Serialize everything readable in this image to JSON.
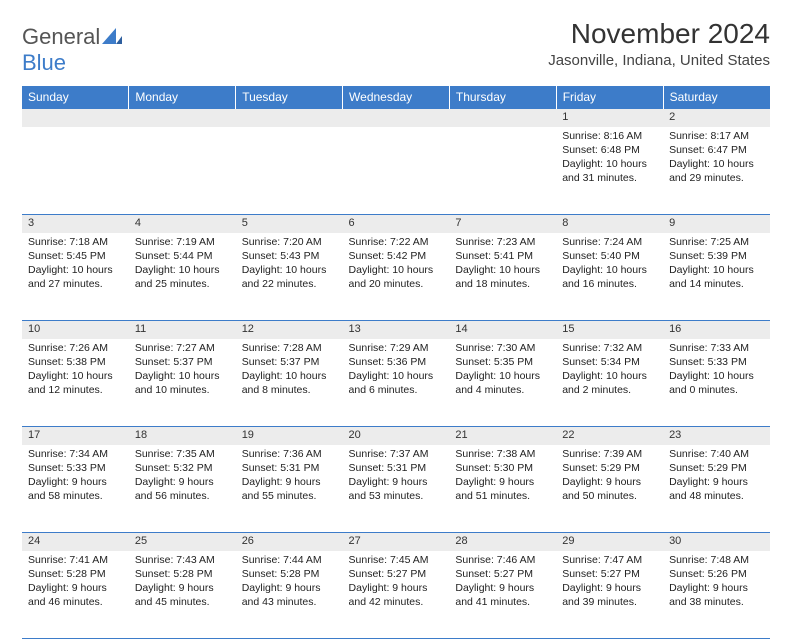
{
  "logo": {
    "text1": "General",
    "text2": "Blue"
  },
  "title": "November 2024",
  "location": "Jasonville, Indiana, United States",
  "colors": {
    "header_bg": "#3d7cc9",
    "header_text": "#ffffff",
    "daynum_bg": "#ececec",
    "rule": "#3d7cc9",
    "text": "#222222",
    "logo_gray": "#555555",
    "logo_blue": "#3d7cc9"
  },
  "day_headers": [
    "Sunday",
    "Monday",
    "Tuesday",
    "Wednesday",
    "Thursday",
    "Friday",
    "Saturday"
  ],
  "weeks": [
    [
      {
        "n": "",
        "sunrise": "",
        "sunset": "",
        "daylight": ""
      },
      {
        "n": "",
        "sunrise": "",
        "sunset": "",
        "daylight": ""
      },
      {
        "n": "",
        "sunrise": "",
        "sunset": "",
        "daylight": ""
      },
      {
        "n": "",
        "sunrise": "",
        "sunset": "",
        "daylight": ""
      },
      {
        "n": "",
        "sunrise": "",
        "sunset": "",
        "daylight": ""
      },
      {
        "n": "1",
        "sunrise": "Sunrise: 8:16 AM",
        "sunset": "Sunset: 6:48 PM",
        "daylight": "Daylight: 10 hours and 31 minutes."
      },
      {
        "n": "2",
        "sunrise": "Sunrise: 8:17 AM",
        "sunset": "Sunset: 6:47 PM",
        "daylight": "Daylight: 10 hours and 29 minutes."
      }
    ],
    [
      {
        "n": "3",
        "sunrise": "Sunrise: 7:18 AM",
        "sunset": "Sunset: 5:45 PM",
        "daylight": "Daylight: 10 hours and 27 minutes."
      },
      {
        "n": "4",
        "sunrise": "Sunrise: 7:19 AM",
        "sunset": "Sunset: 5:44 PM",
        "daylight": "Daylight: 10 hours and 25 minutes."
      },
      {
        "n": "5",
        "sunrise": "Sunrise: 7:20 AM",
        "sunset": "Sunset: 5:43 PM",
        "daylight": "Daylight: 10 hours and 22 minutes."
      },
      {
        "n": "6",
        "sunrise": "Sunrise: 7:22 AM",
        "sunset": "Sunset: 5:42 PM",
        "daylight": "Daylight: 10 hours and 20 minutes."
      },
      {
        "n": "7",
        "sunrise": "Sunrise: 7:23 AM",
        "sunset": "Sunset: 5:41 PM",
        "daylight": "Daylight: 10 hours and 18 minutes."
      },
      {
        "n": "8",
        "sunrise": "Sunrise: 7:24 AM",
        "sunset": "Sunset: 5:40 PM",
        "daylight": "Daylight: 10 hours and 16 minutes."
      },
      {
        "n": "9",
        "sunrise": "Sunrise: 7:25 AM",
        "sunset": "Sunset: 5:39 PM",
        "daylight": "Daylight: 10 hours and 14 minutes."
      }
    ],
    [
      {
        "n": "10",
        "sunrise": "Sunrise: 7:26 AM",
        "sunset": "Sunset: 5:38 PM",
        "daylight": "Daylight: 10 hours and 12 minutes."
      },
      {
        "n": "11",
        "sunrise": "Sunrise: 7:27 AM",
        "sunset": "Sunset: 5:37 PM",
        "daylight": "Daylight: 10 hours and 10 minutes."
      },
      {
        "n": "12",
        "sunrise": "Sunrise: 7:28 AM",
        "sunset": "Sunset: 5:37 PM",
        "daylight": "Daylight: 10 hours and 8 minutes."
      },
      {
        "n": "13",
        "sunrise": "Sunrise: 7:29 AM",
        "sunset": "Sunset: 5:36 PM",
        "daylight": "Daylight: 10 hours and 6 minutes."
      },
      {
        "n": "14",
        "sunrise": "Sunrise: 7:30 AM",
        "sunset": "Sunset: 5:35 PM",
        "daylight": "Daylight: 10 hours and 4 minutes."
      },
      {
        "n": "15",
        "sunrise": "Sunrise: 7:32 AM",
        "sunset": "Sunset: 5:34 PM",
        "daylight": "Daylight: 10 hours and 2 minutes."
      },
      {
        "n": "16",
        "sunrise": "Sunrise: 7:33 AM",
        "sunset": "Sunset: 5:33 PM",
        "daylight": "Daylight: 10 hours and 0 minutes."
      }
    ],
    [
      {
        "n": "17",
        "sunrise": "Sunrise: 7:34 AM",
        "sunset": "Sunset: 5:33 PM",
        "daylight": "Daylight: 9 hours and 58 minutes."
      },
      {
        "n": "18",
        "sunrise": "Sunrise: 7:35 AM",
        "sunset": "Sunset: 5:32 PM",
        "daylight": "Daylight: 9 hours and 56 minutes."
      },
      {
        "n": "19",
        "sunrise": "Sunrise: 7:36 AM",
        "sunset": "Sunset: 5:31 PM",
        "daylight": "Daylight: 9 hours and 55 minutes."
      },
      {
        "n": "20",
        "sunrise": "Sunrise: 7:37 AM",
        "sunset": "Sunset: 5:31 PM",
        "daylight": "Daylight: 9 hours and 53 minutes."
      },
      {
        "n": "21",
        "sunrise": "Sunrise: 7:38 AM",
        "sunset": "Sunset: 5:30 PM",
        "daylight": "Daylight: 9 hours and 51 minutes."
      },
      {
        "n": "22",
        "sunrise": "Sunrise: 7:39 AM",
        "sunset": "Sunset: 5:29 PM",
        "daylight": "Daylight: 9 hours and 50 minutes."
      },
      {
        "n": "23",
        "sunrise": "Sunrise: 7:40 AM",
        "sunset": "Sunset: 5:29 PM",
        "daylight": "Daylight: 9 hours and 48 minutes."
      }
    ],
    [
      {
        "n": "24",
        "sunrise": "Sunrise: 7:41 AM",
        "sunset": "Sunset: 5:28 PM",
        "daylight": "Daylight: 9 hours and 46 minutes."
      },
      {
        "n": "25",
        "sunrise": "Sunrise: 7:43 AM",
        "sunset": "Sunset: 5:28 PM",
        "daylight": "Daylight: 9 hours and 45 minutes."
      },
      {
        "n": "26",
        "sunrise": "Sunrise: 7:44 AM",
        "sunset": "Sunset: 5:28 PM",
        "daylight": "Daylight: 9 hours and 43 minutes."
      },
      {
        "n": "27",
        "sunrise": "Sunrise: 7:45 AM",
        "sunset": "Sunset: 5:27 PM",
        "daylight": "Daylight: 9 hours and 42 minutes."
      },
      {
        "n": "28",
        "sunrise": "Sunrise: 7:46 AM",
        "sunset": "Sunset: 5:27 PM",
        "daylight": "Daylight: 9 hours and 41 minutes."
      },
      {
        "n": "29",
        "sunrise": "Sunrise: 7:47 AM",
        "sunset": "Sunset: 5:27 PM",
        "daylight": "Daylight: 9 hours and 39 minutes."
      },
      {
        "n": "30",
        "sunrise": "Sunrise: 7:48 AM",
        "sunset": "Sunset: 5:26 PM",
        "daylight": "Daylight: 9 hours and 38 minutes."
      }
    ]
  ]
}
